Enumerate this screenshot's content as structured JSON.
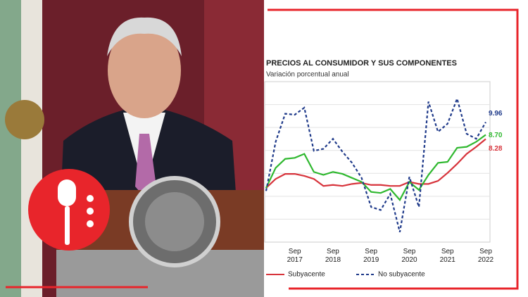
{
  "chart_data": {
    "type": "line",
    "title": "PRECIOS AL CONSUMIDOR Y SUS COMPONENTES",
    "subtitle": "Variación porcentual anual",
    "categories": [
      null,
      null,
      null,
      "Sep 2017",
      null,
      null,
      null,
      "Sep 2018",
      null,
      null,
      null,
      "Sep 2019",
      null,
      null,
      null,
      "Sep 2020",
      null,
      null,
      null,
      "Sep 2021",
      null,
      null,
      null,
      "Sep 2022"
    ],
    "ylim": [
      -2,
      14
    ],
    "grid": true,
    "series": [
      {
        "name": "Subyacente",
        "color": "#d7333b",
        "dash": false,
        "values": [
          3.4,
          4.3,
          4.8,
          4.8,
          4.6,
          4.3,
          3.6,
          3.7,
          3.6,
          3.8,
          3.9,
          3.7,
          3.7,
          3.6,
          3.6,
          4.0,
          3.8,
          3.8,
          4.1,
          4.9,
          5.8,
          6.8,
          7.5,
          8.28
        ]
      },
      {
        "color": "#2fb82f",
        "dash": false,
        "values": [
          3.4,
          5.4,
          6.3,
          6.4,
          6.8,
          5.0,
          4.7,
          5.0,
          4.8,
          4.4,
          4.0,
          3.0,
          2.9,
          3.3,
          2.2,
          4.0,
          3.2,
          4.7,
          5.9,
          6.0,
          7.4,
          7.5,
          8.0,
          8.7
        ],
        "value_labels": [
          null,
          null,
          null,
          null,
          null,
          null,
          null,
          null,
          null,
          null,
          null,
          null,
          null,
          null,
          null,
          null,
          null,
          null,
          null,
          null,
          null,
          null,
          null,
          "8.70"
        ]
      },
      {
        "name": "No subyacente",
        "color": "#1f3a8a",
        "dash": true,
        "values": [
          3.1,
          8.0,
          10.8,
          10.7,
          11.4,
          7.1,
          7.3,
          8.3,
          7.0,
          5.9,
          4.4,
          1.5,
          1.2,
          2.8,
          -1.0,
          4.5,
          1.5,
          12.0,
          9.0,
          9.8,
          12.3,
          8.8,
          8.3,
          9.96
        ]
      }
    ]
  }
}
